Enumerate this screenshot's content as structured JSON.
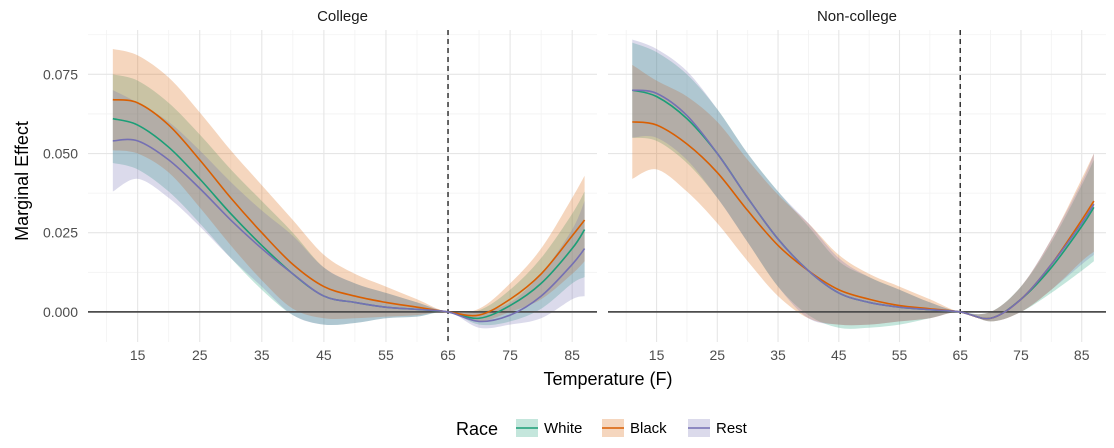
{
  "chart_data": {
    "type": "line",
    "facets": [
      {
        "title": "College",
        "series": [
          {
            "name": "White",
            "x": [
              11,
              15,
              20,
              25,
              30,
              35,
              40,
              45,
              50,
              55,
              60,
              65,
              70,
              75,
              80,
              85,
              87
            ],
            "y": [
              0.061,
              0.059,
              0.052,
              0.042,
              0.031,
              0.021,
              0.012,
              0.005,
              0.003,
              0.0015,
              0.0008,
              0.0,
              -0.002,
              0.002,
              0.009,
              0.02,
              0.026
            ],
            "lower": [
              0.047,
              0.045,
              0.038,
              0.028,
              0.017,
              0.007,
              -0.001,
              -0.004,
              -0.0035,
              -0.002,
              -0.0015,
              0.0,
              -0.004,
              -0.003,
              0.001,
              0.009,
              0.011
            ],
            "upper": [
              0.075,
              0.073,
              0.066,
              0.056,
              0.045,
              0.035,
              0.025,
              0.014,
              0.009,
              0.006,
              0.003,
              0.0,
              0.0005,
              0.007,
              0.017,
              0.031,
              0.038
            ]
          },
          {
            "name": "Black",
            "x": [
              11,
              15,
              20,
              25,
              30,
              35,
              40,
              45,
              50,
              55,
              60,
              65,
              70,
              75,
              80,
              85,
              87
            ],
            "y": [
              0.067,
              0.066,
              0.059,
              0.048,
              0.036,
              0.025,
              0.015,
              0.008,
              0.005,
              0.003,
              0.0015,
              0.0,
              -0.001,
              0.004,
              0.012,
              0.024,
              0.029
            ],
            "lower": [
              0.051,
              0.05,
              0.044,
              0.033,
              0.021,
              0.01,
              0.001,
              -0.002,
              -0.002,
              -0.0015,
              -0.001,
              0.0,
              -0.003,
              0.0,
              0.004,
              0.012,
              0.016
            ],
            "upper": [
              0.083,
              0.081,
              0.074,
              0.063,
              0.051,
              0.04,
              0.029,
              0.018,
              0.012,
              0.008,
              0.004,
              0.0,
              0.001,
              0.009,
              0.02,
              0.036,
              0.043
            ]
          },
          {
            "name": "Rest",
            "x": [
              11,
              15,
              20,
              25,
              30,
              35,
              40,
              45,
              50,
              55,
              60,
              65,
              70,
              75,
              80,
              85,
              87
            ],
            "y": [
              0.054,
              0.054,
              0.048,
              0.039,
              0.029,
              0.02,
              0.012,
              0.005,
              0.003,
              0.0015,
              0.0008,
              0.0,
              -0.003,
              -0.001,
              0.005,
              0.015,
              0.02
            ],
            "lower": [
              0.038,
              0.042,
              0.036,
              0.027,
              0.017,
              0.008,
              -0.001,
              -0.004,
              -0.0035,
              -0.002,
              -0.0015,
              0.0,
              -0.005,
              -0.004,
              -0.002,
              0.004,
              0.005
            ],
            "upper": [
              0.07,
              0.066,
              0.06,
              0.051,
              0.041,
              0.032,
              0.024,
              0.014,
              0.009,
              0.006,
              0.003,
              0.0,
              0.0,
              0.003,
              0.012,
              0.026,
              0.035
            ]
          }
        ]
      },
      {
        "title": "Non-college",
        "series": [
          {
            "name": "White",
            "x": [
              11,
              15,
              20,
              25,
              30,
              35,
              40,
              45,
              50,
              55,
              60,
              65,
              70,
              75,
              80,
              85,
              87
            ],
            "y": [
              0.07,
              0.068,
              0.061,
              0.05,
              0.036,
              0.023,
              0.013,
              0.006,
              0.003,
              0.0015,
              0.0007,
              0.0,
              -0.002,
              0.004,
              0.014,
              0.027,
              0.033
            ],
            "lower": [
              0.055,
              0.054,
              0.047,
              0.036,
              0.022,
              0.008,
              -0.001,
              -0.005,
              -0.005,
              -0.004,
              -0.002,
              0.0,
              -0.003,
              0.0,
              0.006,
              0.013,
              0.016
            ],
            "upper": [
              0.085,
              0.082,
              0.075,
              0.064,
              0.05,
              0.038,
              0.027,
              0.016,
              0.011,
              0.007,
              0.003,
              0.0,
              0.0,
              0.008,
              0.022,
              0.04,
              0.048
            ]
          },
          {
            "name": "Black",
            "x": [
              11,
              15,
              20,
              25,
              30,
              35,
              40,
              45,
              50,
              55,
              60,
              65,
              70,
              75,
              80,
              85,
              87
            ],
            "y": [
              0.06,
              0.059,
              0.053,
              0.044,
              0.032,
              0.021,
              0.013,
              0.007,
              0.004,
              0.002,
              0.001,
              0.0,
              -0.002,
              0.004,
              0.015,
              0.029,
              0.035
            ],
            "lower": [
              0.042,
              0.045,
              0.038,
              0.028,
              0.016,
              0.005,
              -0.002,
              -0.004,
              -0.004,
              -0.003,
              -0.002,
              0.0,
              -0.003,
              0.0,
              0.007,
              0.016,
              0.019
            ],
            "upper": [
              0.078,
              0.073,
              0.068,
              0.06,
              0.048,
              0.037,
              0.028,
              0.018,
              0.012,
              0.008,
              0.004,
              0.0,
              0.0,
              0.008,
              0.023,
              0.042,
              0.05
            ]
          },
          {
            "name": "Rest",
            "x": [
              11,
              15,
              20,
              25,
              30,
              35,
              40,
              45,
              50,
              55,
              60,
              65,
              70,
              75,
              80,
              85,
              87
            ],
            "y": [
              0.07,
              0.069,
              0.062,
              0.05,
              0.036,
              0.023,
              0.013,
              0.006,
              0.003,
              0.0015,
              0.0007,
              0.0,
              -0.002,
              0.004,
              0.015,
              0.028,
              0.034
            ],
            "lower": [
              0.055,
              0.055,
              0.048,
              0.036,
              0.022,
              0.008,
              -0.002,
              -0.004,
              -0.004,
              -0.003,
              -0.002,
              0.0,
              -0.003,
              0.0,
              0.007,
              0.015,
              0.018
            ],
            "upper": [
              0.086,
              0.083,
              0.076,
              0.064,
              0.05,
              0.038,
              0.028,
              0.017,
              0.011,
              0.007,
              0.003,
              0.0,
              0.0,
              0.008,
              0.023,
              0.041,
              0.05
            ]
          }
        ]
      }
    ],
    "xlabel": "Temperature (F)",
    "ylabel": "Marginal Effect",
    "xlim": [
      7,
      89
    ],
    "ylim": [
      -0.0095,
      0.089
    ],
    "xticks": [
      15,
      25,
      35,
      45,
      55,
      65,
      75,
      85
    ],
    "xtick_labels": [
      "15",
      "25",
      "35",
      "45",
      "55",
      "65",
      "75",
      "85"
    ],
    "yticks": [
      0.0,
      0.025,
      0.05,
      0.075
    ],
    "ytick_labels": [
      "0.000",
      "0.025",
      "0.050",
      "0.075"
    ],
    "reference_lines": {
      "vertical_x": 65,
      "horizontal_y": 0.0
    },
    "legend": {
      "title": "Race",
      "position": "bottom",
      "entries": [
        "White",
        "Black",
        "Rest"
      ]
    },
    "colors": {
      "White": "#1b9e77",
      "Black": "#d95f02",
      "Rest": "#7570b3"
    },
    "grid": true
  }
}
